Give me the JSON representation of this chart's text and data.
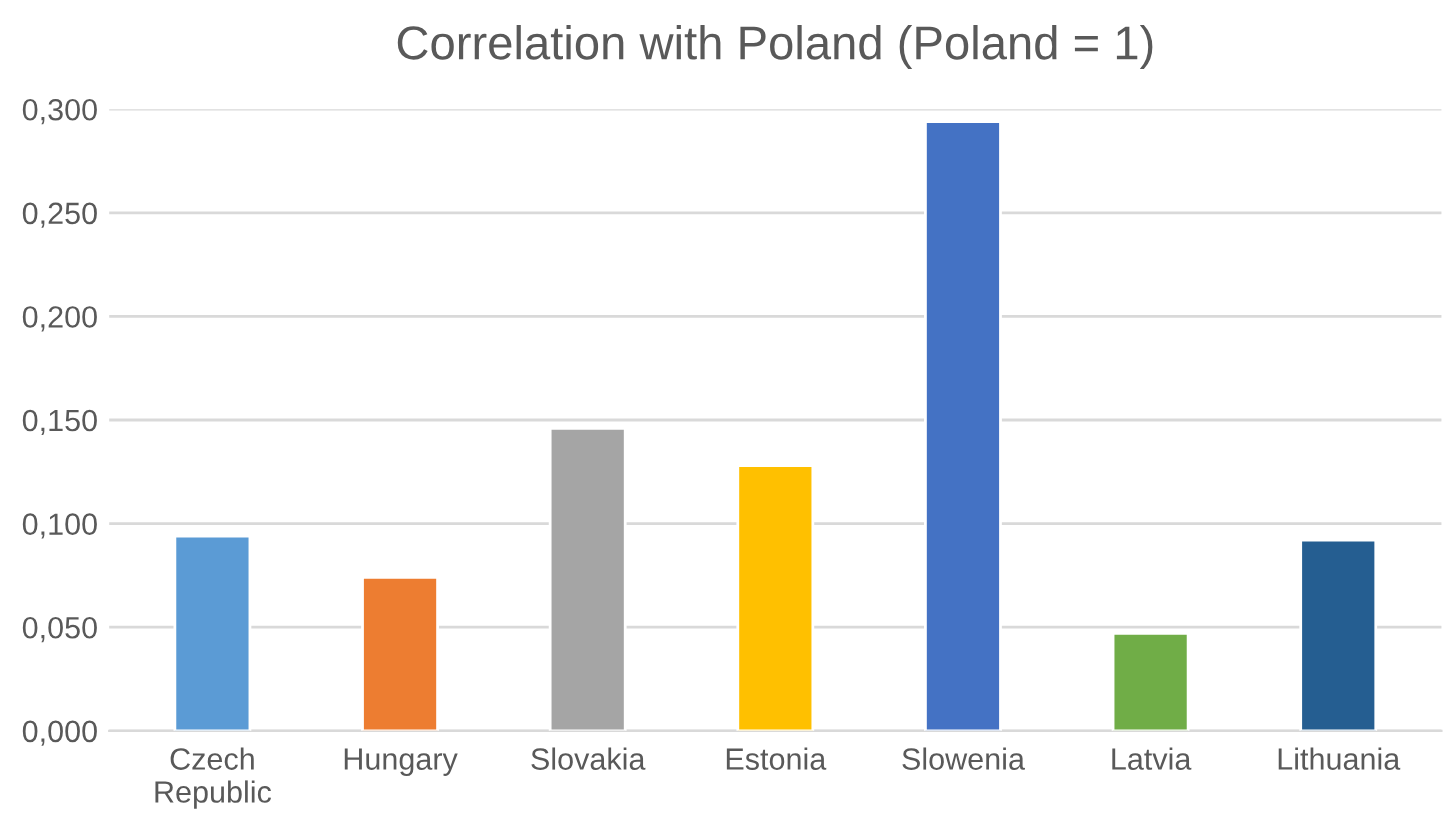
{
  "chart_data": {
    "type": "bar",
    "title": "Correlation with Poland (Poland = 1)",
    "categories": [
      "Czech Republic",
      "Hungary",
      "Slovakia",
      "Estonia",
      "Slowenia",
      "Latvia",
      "Lithuania"
    ],
    "values": [
      0.094,
      0.074,
      0.146,
      0.128,
      0.294,
      0.047,
      0.092
    ],
    "colors": [
      "#5b9bd5",
      "#ed7d31",
      "#a5a5a5",
      "#ffc000",
      "#4472c4",
      "#70ad47",
      "#255e91"
    ],
    "ylim": [
      0,
      0.3
    ],
    "yticks": [
      {
        "value": 0,
        "label": "0,000"
      },
      {
        "value": 0.05,
        "label": "0,050"
      },
      {
        "value": 0.1,
        "label": "0,100"
      },
      {
        "value": 0.15,
        "label": "0,150"
      },
      {
        "value": 0.2,
        "label": "0,200"
      },
      {
        "value": 0.25,
        "label": "0,250"
      },
      {
        "value": 0.3,
        "label": "0,300"
      }
    ],
    "grid": "y"
  }
}
